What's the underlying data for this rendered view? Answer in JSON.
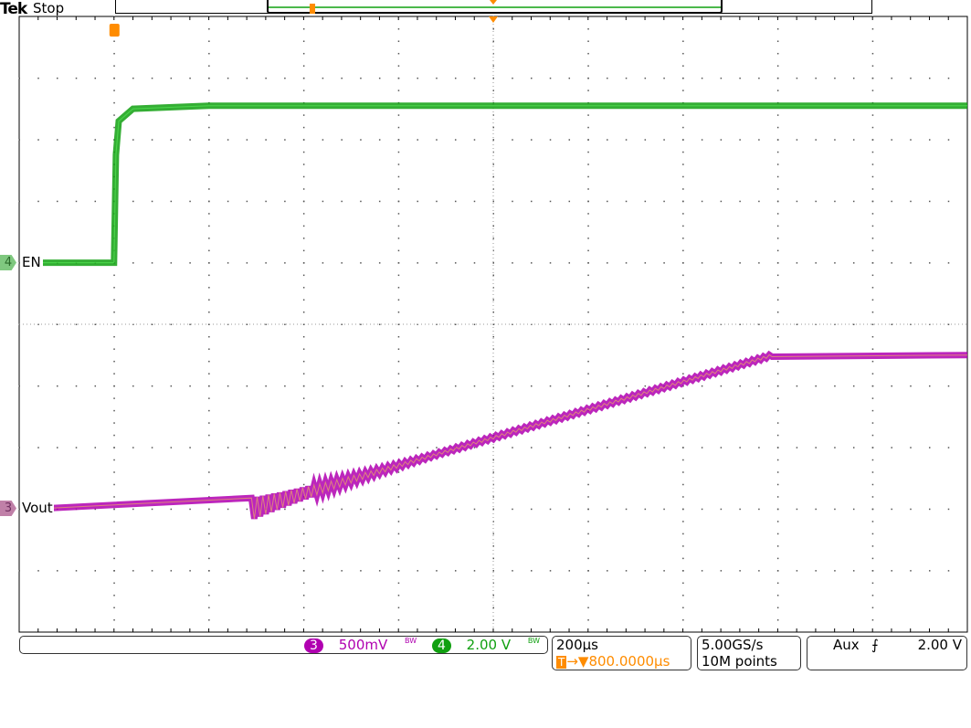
{
  "header": {
    "brand": "Tek",
    "status": "Stop"
  },
  "channels": [
    {
      "number": "3",
      "label": "Vout",
      "scale": "500mV",
      "bw": "BW",
      "color": "#b000b0"
    },
    {
      "number": "4",
      "label": "EN",
      "scale": "2.00 V",
      "bw": "BW",
      "color": "#10a010"
    }
  ],
  "timebase": {
    "scale": "200µs",
    "trigger_position": "800.0000µs",
    "trigger_icon": "T",
    "arrow": "→▼"
  },
  "acquisition": {
    "sample_rate": "5.00GS/s",
    "record_length": "10M points"
  },
  "trigger": {
    "source": "Aux",
    "slope": "rising",
    "slope_glyph": "⨍",
    "level": "2.00 V",
    "color": "#ff8c00"
  },
  "chart_data": {
    "type": "line",
    "xlabel": "",
    "ylabel": "",
    "x_unit": "µs",
    "x_per_div": 200,
    "xlim": [
      -200,
      1800
    ],
    "divisions_x": 10,
    "divisions_y": 10,
    "grid": true,
    "series": [
      {
        "name": "EN",
        "channel": "4",
        "volts_per_div": 2.0,
        "offset_div": 1,
        "points": [
          [
            -150,
            0
          ],
          [
            0,
            0
          ],
          [
            4,
            3.5
          ],
          [
            10,
            4.6
          ],
          [
            40,
            5.0
          ],
          [
            200,
            5.1
          ],
          [
            1800,
            5.1
          ]
        ]
      },
      {
        "name": "Vout",
        "channel": "3",
        "volts_per_div": 0.5,
        "offset_div": -3,
        "points": [
          [
            -170,
            0
          ],
          [
            290,
            0
          ],
          [
            1390,
            1.25
          ],
          [
            1800,
            1.25
          ]
        ]
      }
    ]
  }
}
